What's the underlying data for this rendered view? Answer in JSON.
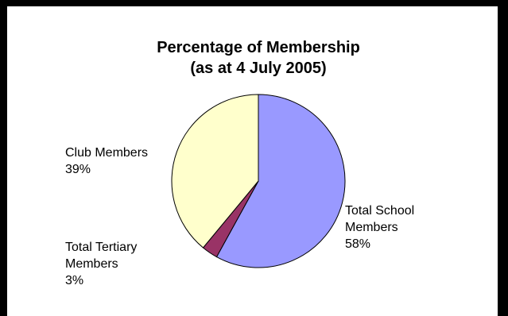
{
  "chart_data": {
    "type": "pie",
    "title": [
      "Percentage of Membership",
      "(as at 4 July 2005)"
    ],
    "slices": [
      {
        "name": "Total School Members",
        "label_lines": [
          "Total School",
          "Members",
          "58%"
        ],
        "value": 58,
        "color": "#9999FF"
      },
      {
        "name": "Total Tertiary Members",
        "label_lines": [
          "Total Tertiary",
          "Members",
          "3%"
        ],
        "value": 3,
        "color": "#993366"
      },
      {
        "name": "Club Members",
        "label_lines": [
          "Club Members",
          "39%"
        ],
        "value": 39,
        "color": "#FFFFCC"
      }
    ],
    "start_angle_deg": 0,
    "direction": "clockwise",
    "legend": "none"
  }
}
